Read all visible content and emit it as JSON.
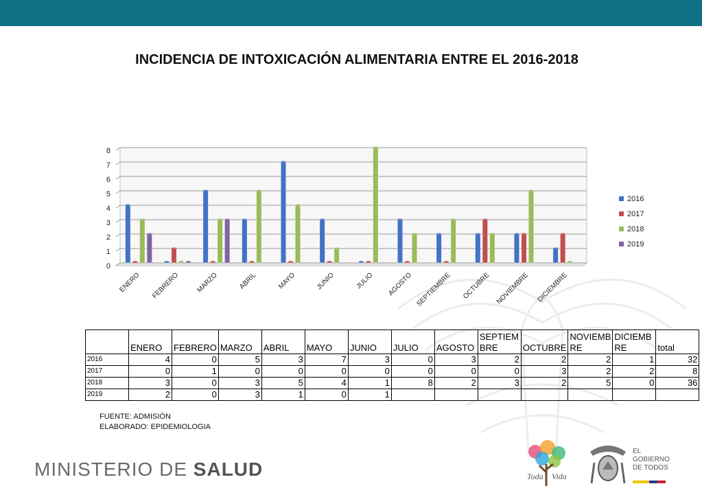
{
  "header": {
    "title": "INCIDENCIA DE INTOXICACIÓN ALIMENTARIA  ENTRE EL 2016-2018"
  },
  "chart_data": {
    "type": "bar",
    "title": "",
    "categories": [
      "ENERO",
      "FEBRERO",
      "MARZO",
      "ABRIL",
      "MAYO",
      "JUNIO",
      "JULIO",
      "AGOSTO",
      "SEPTIEMBRE",
      "OCTUBRE",
      "NOVIEMBRE",
      "DICIEMBRE"
    ],
    "series": [
      {
        "name": "2016",
        "color": "#4472c4",
        "values": [
          4,
          0,
          5,
          3,
          7,
          3,
          0,
          3,
          2,
          2,
          2,
          1
        ]
      },
      {
        "name": "2017",
        "color": "#c0504d",
        "values": [
          0,
          1,
          0,
          0,
          0,
          0,
          0,
          0,
          0,
          3,
          2,
          2
        ]
      },
      {
        "name": "2018",
        "color": "#9bbb59",
        "values": [
          3,
          0,
          3,
          5,
          4,
          1,
          8,
          2,
          3,
          2,
          5,
          0
        ]
      },
      {
        "name": "2019",
        "color": "#8064a2",
        "values": [
          2,
          0,
          3,
          null,
          null,
          null,
          null,
          null,
          null,
          null,
          null,
          null
        ]
      }
    ],
    "ylim": [
      0,
      8
    ],
    "yticks": [
      0,
      1,
      2,
      3,
      4,
      5,
      6,
      7,
      8
    ],
    "grid": true,
    "legend": "right"
  },
  "table": {
    "headers": [
      "",
      "ENERO",
      "FEBRERO",
      "MARZO",
      "ABRIL",
      "MAYO",
      "JUNIO",
      "JULIO",
      "AGOSTO",
      "SEPTIEM BRE",
      "OCTUBRE",
      "NOVIEMB RE",
      "DICIEMB RE",
      "total"
    ],
    "rows": [
      [
        "2016",
        "4",
        "0",
        "5",
        "3",
        "7",
        "3",
        "0",
        "3",
        "2",
        "2",
        "2",
        "1",
        "32"
      ],
      [
        "2017",
        "0",
        "1",
        "0",
        "0",
        "0",
        "0",
        "0",
        "0",
        "0",
        "3",
        "2",
        "2",
        "8"
      ],
      [
        "2018",
        "3",
        "0",
        "3",
        "5",
        "4",
        "1",
        "8",
        "2",
        "3",
        "2",
        "5",
        "0",
        "36"
      ],
      [
        "2019",
        "2",
        "0",
        "3",
        "1",
        "0",
        "1",
        "",
        "",
        "",
        "",
        "",
        "",
        ""
      ]
    ]
  },
  "source": {
    "line1": "FUENTE: ADMISIÒN",
    "line2": "ELABORADO: EPIDEMIOLOGIA"
  },
  "footer": {
    "brand_light": "MINISTERIO DE ",
    "brand_bold": "SALUD",
    "gov_line1": "EL",
    "gov_line2": "GOBIERNO",
    "gov_line3": "DE TODOS",
    "tree_text": "Toda una Vida"
  }
}
